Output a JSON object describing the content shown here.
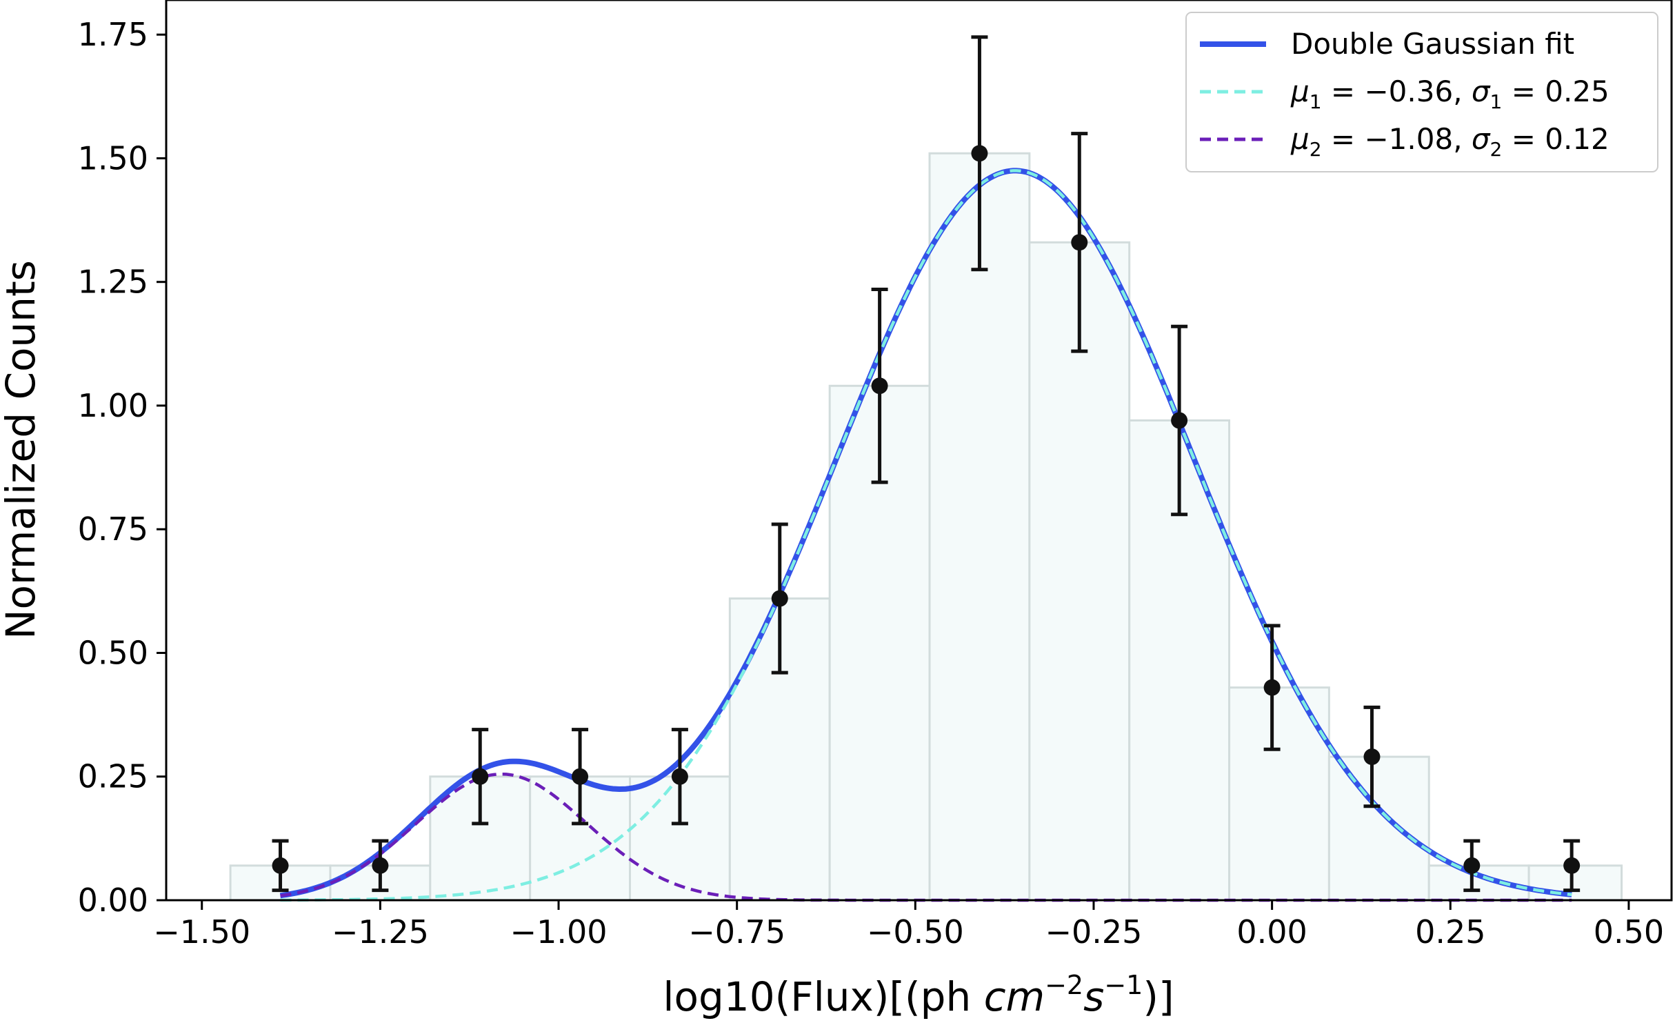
{
  "chart_data": {
    "type": "bar",
    "xlabel": "log10(Flux)[(ph cm⁻²s⁻¹)]",
    "ylabel": "Normalized Counts",
    "xlim": [
      -1.55,
      0.56
    ],
    "ylim": [
      0,
      1.82
    ],
    "xticks": [
      -1.5,
      -1.25,
      -1.0,
      -0.75,
      -0.5,
      -0.25,
      0.0,
      0.25,
      0.5
    ],
    "xtick_labels": [
      "−1.50",
      "−1.25",
      "−1.00",
      "−0.75",
      "−0.50",
      "−0.25",
      "0.00",
      "0.25",
      "0.50"
    ],
    "yticks": [
      0,
      0.25,
      0.5,
      0.75,
      1.0,
      1.25,
      1.5,
      1.75
    ],
    "ytick_labels": [
      "0.00",
      "0.25",
      "0.50",
      "0.75",
      "1.00",
      "1.25",
      "1.50",
      "1.75"
    ],
    "grid": false,
    "legend_position": "top-right",
    "histogram": {
      "bin_edges": [
        -1.46,
        -1.32,
        -1.18,
        -1.04,
        -0.9,
        -0.76,
        -0.62,
        -0.48,
        -0.34,
        -0.2,
        -0.06,
        0.08,
        0.22,
        0.36,
        0.49
      ],
      "values": [
        0.07,
        0.07,
        0.25,
        0.25,
        0.25,
        0.61,
        1.04,
        1.51,
        1.33,
        0.97,
        0.43,
        0.29,
        0.07,
        0.07
      ],
      "fill": "#f4fafa",
      "edge": "#d2dcdc"
    },
    "points": {
      "x": [
        -1.39,
        -1.25,
        -1.11,
        -0.97,
        -0.83,
        -0.69,
        -0.55,
        -0.41,
        -0.27,
        -0.13,
        0.0,
        0.14,
        0.28,
        0.42
      ],
      "y": [
        0.07,
        0.07,
        0.25,
        0.25,
        0.25,
        0.61,
        1.04,
        1.51,
        1.33,
        0.97,
        0.43,
        0.29,
        0.07,
        0.07
      ],
      "yerr": [
        0.05,
        0.05,
        0.095,
        0.095,
        0.095,
        0.15,
        0.195,
        0.235,
        0.22,
        0.19,
        0.125,
        0.1,
        0.05,
        0.05
      ],
      "color": "#111111"
    },
    "series": [
      {
        "name": "Double Gaussian fit",
        "style": "solid",
        "color": "#3352e8",
        "x_range": [
          -1.39,
          0.42
        ]
      },
      {
        "name": "μ₁ = −0.36, σ₁ = 0.25",
        "style": "dashed",
        "color": "#7eeee2",
        "mu": -0.36,
        "sigma": 0.25,
        "amplitude": 1.475,
        "x_range": [
          -1.39,
          0.42
        ]
      },
      {
        "name": "μ₂ = −1.08, σ₂ = 0.12",
        "style": "dashed",
        "color": "#6b1fb8",
        "mu": -1.08,
        "sigma": 0.12,
        "amplitude": 0.255,
        "x_range": [
          -1.39,
          0.42
        ]
      }
    ],
    "legend": {
      "fit_label": "Double Gaussian fit",
      "g1_mu_value": "−0.36",
      "g1_sigma_value": "0.25",
      "g2_mu_value": "−1.08",
      "g2_sigma_value": "0.12"
    }
  }
}
